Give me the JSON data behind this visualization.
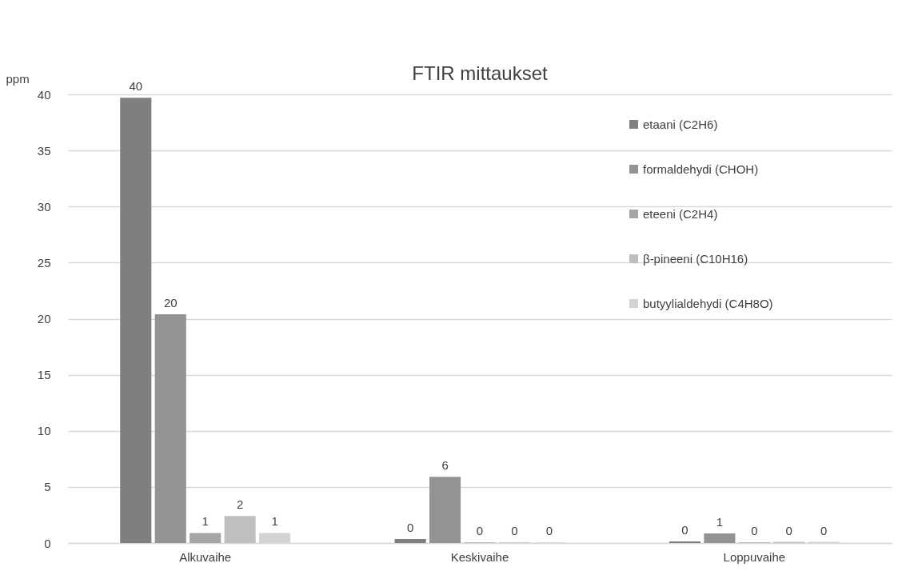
{
  "chart_data": {
    "type": "bar",
    "title": "FTIR mittaukset",
    "ylabel": "ppm",
    "categories": [
      "Alkuvaihe",
      "Keskivaihe",
      "Loppuvaihe"
    ],
    "series": [
      {
        "name": "etaani (C2H6)",
        "color": "#7f7f7f",
        "values": [
          39.7,
          0.35,
          0.15
        ],
        "value_labels": [
          "40",
          "0",
          "0"
        ]
      },
      {
        "name": "formaldehydi (CHOH)",
        "color": "#939393",
        "values": [
          20.4,
          5.9,
          0.85
        ],
        "value_labels": [
          "20",
          "6",
          "1"
        ]
      },
      {
        "name": "eteeni (C2H4)",
        "color": "#a5a5a5",
        "values": [
          0.9,
          0.05,
          0.05
        ],
        "value_labels": [
          "1",
          "0",
          "0"
        ]
      },
      {
        "name": "β-pineeni (C10H16)",
        "color": "#bfbfbf",
        "values": [
          2.4,
          0.05,
          0.1
        ],
        "value_labels": [
          "2",
          "0",
          "0"
        ]
      },
      {
        "name": "butyylialdehydi (C4H8O)",
        "color": "#d3d3d3",
        "values": [
          0.9,
          0.05,
          0.1
        ],
        "value_labels": [
          "1",
          "0",
          "0"
        ]
      }
    ],
    "ylim": [
      0,
      40
    ],
    "yticks": [
      0,
      5,
      10,
      15,
      20,
      25,
      30,
      35,
      40
    ],
    "grid": "y",
    "legend": "top right"
  }
}
